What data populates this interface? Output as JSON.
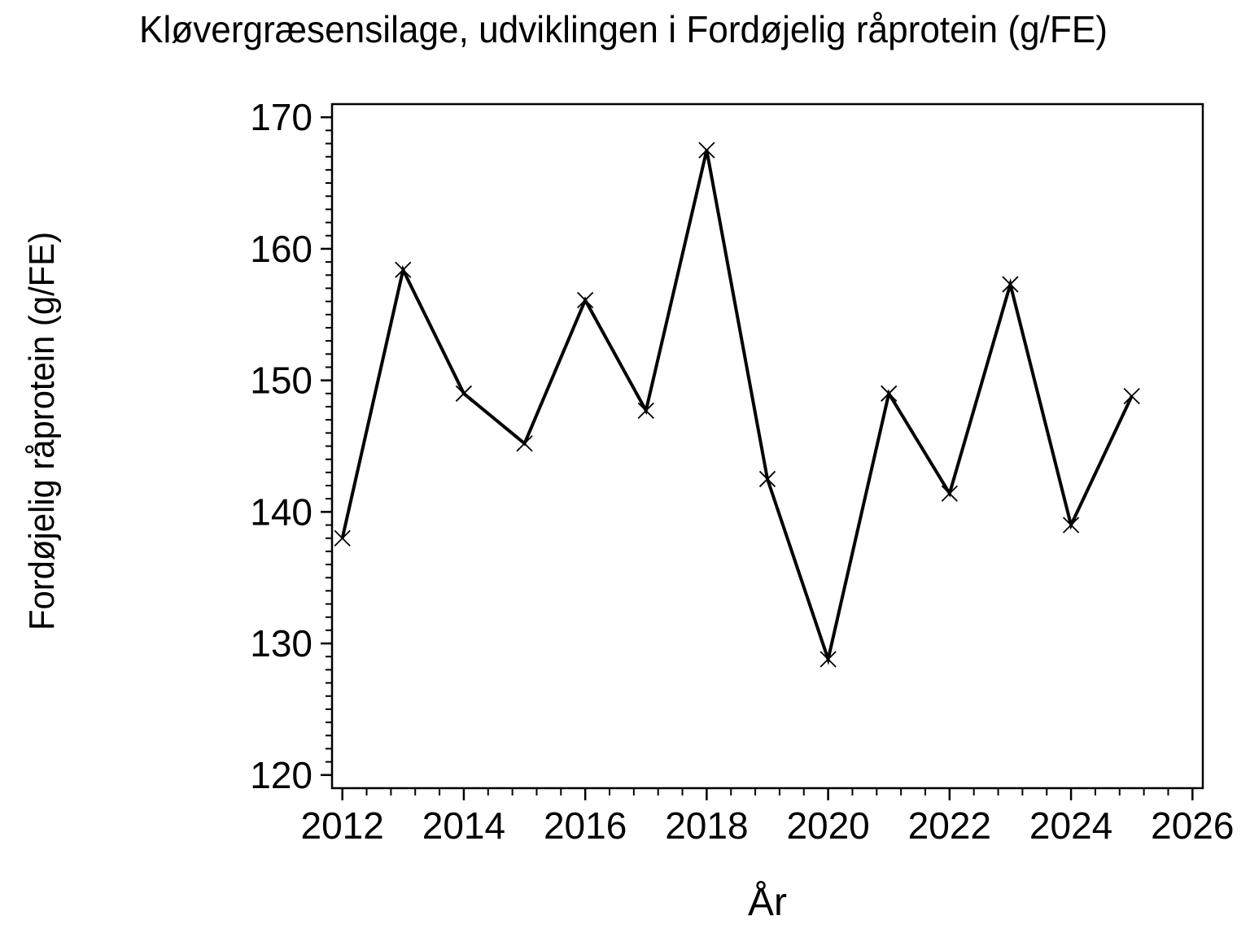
{
  "page": {
    "background": "#ffffff",
    "foreground": "#000000"
  },
  "chart_data": {
    "type": "line",
    "title": "Kløvergræsensilage, udviklingen i Fordøjelig råprotein (g/FE)",
    "xlabel": "År",
    "ylabel": "Fordøjelig råprotein (g/FE)",
    "x": [
      2012,
      2013,
      2014,
      2015,
      2016,
      2017,
      2018,
      2019,
      2020,
      2021,
      2022,
      2023,
      2024,
      2025
    ],
    "values": [
      138.0,
      158.4,
      149.0,
      145.2,
      156.1,
      147.7,
      167.5,
      142.5,
      128.8,
      149.0,
      141.4,
      157.3,
      139.0,
      148.8
    ],
    "marker": "x",
    "line_color": "#000000",
    "axis_color": "#000000",
    "background": "#ffffff",
    "xlim": [
      2011.83,
      2026.17
    ],
    "ylim": [
      119,
      171
    ],
    "xticks": [
      2012,
      2014,
      2016,
      2018,
      2020,
      2022,
      2024,
      2026
    ],
    "yticks": [
      120,
      130,
      140,
      150,
      160,
      170
    ],
    "x_minor_step": 0.4,
    "y_minor_step": 1,
    "grid": "off",
    "legend": "none"
  }
}
